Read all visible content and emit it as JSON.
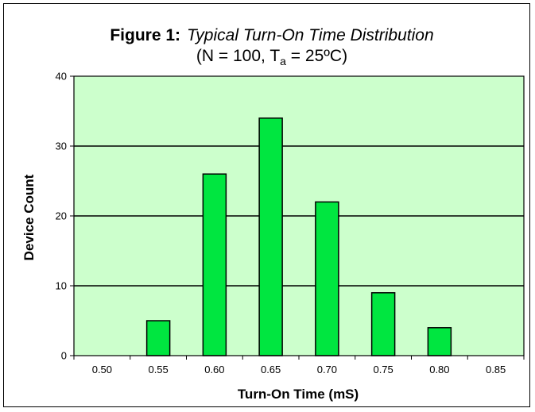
{
  "chart_data": {
    "type": "bar",
    "title_prefix": "Figure 1:",
    "title": "Typical Turn-On Time Distribution",
    "subtitle_pre": "(N = 100, T",
    "subtitle_sub": "a",
    "subtitle_post": " = 25ºC)",
    "xlabel": "Turn-On Time  (mS)",
    "ylabel": "Device Count",
    "categories": [
      "0.50",
      "0.55",
      "0.60",
      "0.65",
      "0.70",
      "0.75",
      "0.80",
      "0.85"
    ],
    "values": [
      0,
      5,
      26,
      34,
      22,
      9,
      4,
      0
    ],
    "ylim": [
      0,
      40
    ],
    "yticks": [
      "0",
      "10",
      "20",
      "30",
      "40"
    ],
    "grid": true,
    "colors": {
      "plot_background": "#ccffcc",
      "bar_fill": "#00e640",
      "bar_stroke": "#000000"
    }
  }
}
